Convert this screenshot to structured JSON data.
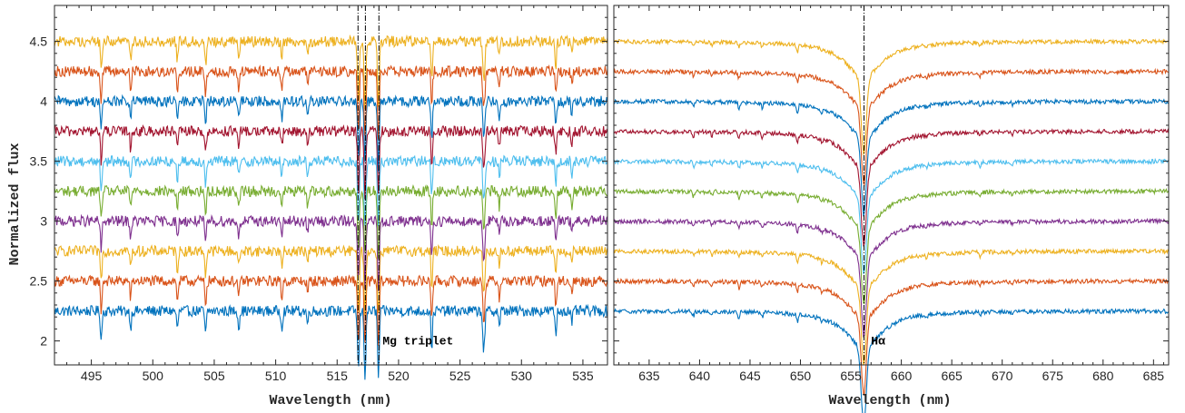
{
  "chart_data": {
    "type": "line",
    "ylabel": "Normalized flux",
    "panels": [
      {
        "name": "left-panel",
        "xlabel": "Wavelength (nm)",
        "xlim": [
          492,
          537
        ],
        "ylim": [
          1.8,
          4.8
        ],
        "xticks": [
          495,
          500,
          505,
          510,
          515,
          520,
          525,
          530,
          535
        ],
        "xtick_labels": [
          "495",
          "500",
          "505",
          "510",
          "515",
          "520",
          "525",
          "530",
          "535"
        ],
        "yticks": [
          2,
          2.5,
          3,
          3.5,
          4,
          4.5
        ],
        "ytick_labels": [
          "2",
          "2.5",
          "3",
          "3.5",
          "4",
          "4.5"
        ],
        "vlines": [
          516.7,
          517.3,
          518.4
        ],
        "annotation": {
          "text": "Mg triplet",
          "x": 518.7,
          "y": 1.97
        },
        "lines": [
          {
            "x": 517.27,
            "depth": 0.55,
            "width": 0.1
          },
          {
            "x": 518.36,
            "depth": 0.55,
            "width": 0.1
          },
          {
            "x": 516.73,
            "depth": 0.5,
            "width": 0.1
          },
          {
            "x": 495.8,
            "depth": 0.25,
            "width": 0.09
          },
          {
            "x": 498.2,
            "depth": 0.15,
            "width": 0.08
          },
          {
            "x": 502.0,
            "depth": 0.16,
            "width": 0.09
          },
          {
            "x": 504.3,
            "depth": 0.2,
            "width": 0.09
          },
          {
            "x": 507.0,
            "depth": 0.14,
            "width": 0.09
          },
          {
            "x": 510.5,
            "depth": 0.14,
            "width": 0.09
          },
          {
            "x": 512.6,
            "depth": 0.12,
            "width": 0.08
          },
          {
            "x": 522.7,
            "depth": 0.3,
            "width": 0.09
          },
          {
            "x": 526.9,
            "depth": 0.25,
            "width": 0.09
          },
          {
            "x": 527.0,
            "depth": 0.18,
            "width": 0.09
          },
          {
            "x": 528.2,
            "depth": 0.14,
            "width": 0.08
          },
          {
            "x": 532.8,
            "depth": 0.2,
            "width": 0.09
          },
          {
            "x": 534.1,
            "depth": 0.12,
            "width": 0.08
          }
        ]
      },
      {
        "name": "right-panel",
        "xlabel": "Wavelength (nm)",
        "xlim": [
          631.5,
          686.5
        ],
        "ylim": [
          1.8,
          4.8
        ],
        "xticks": [
          635,
          640,
          645,
          650,
          655,
          660,
          665,
          670,
          675,
          680,
          685
        ],
        "xtick_labels": [
          "635",
          "640",
          "645",
          "650",
          "655",
          "660",
          "665",
          "670",
          "675",
          "680",
          "685"
        ],
        "yticks": [
          2,
          2.5,
          3,
          3.5,
          4,
          4.5
        ],
        "vlines": [
          656.3
        ],
        "annotation": {
          "text": "Hα",
          "x": 657.0,
          "y": 1.97
        },
        "lines": [
          {
            "x": 649.7,
            "depth": 0.06,
            "width": 0.12
          },
          {
            "x": 643.9,
            "depth": 0.05,
            "width": 0.12
          },
          {
            "x": 639.4,
            "depth": 0.04,
            "width": 0.12
          },
          {
            "x": 641.2,
            "depth": 0.03,
            "width": 0.12
          },
          {
            "x": 646.2,
            "depth": 0.04,
            "width": 0.12
          },
          {
            "x": 652.1,
            "depth": 0.03,
            "width": 0.12
          },
          {
            "x": 662.5,
            "depth": 0.02,
            "width": 0.12
          },
          {
            "x": 667.8,
            "depth": 0.03,
            "width": 0.12
          },
          {
            "x": 671.0,
            "depth": 0.02,
            "width": 0.12
          }
        ],
        "halpha": {
          "x": 656.28,
          "core_depth": 0.65,
          "core_width": 0.35,
          "wing_depth": 0.3,
          "wing_width": 2.2
        }
      }
    ],
    "series": [
      {
        "offset": 2.25,
        "color": "#0072BD"
      },
      {
        "offset": 2.5,
        "color": "#D95319"
      },
      {
        "offset": 2.75,
        "color": "#EDB120"
      },
      {
        "offset": 3.0,
        "color": "#7E2F8E"
      },
      {
        "offset": 3.25,
        "color": "#77AC30"
      },
      {
        "offset": 3.5,
        "color": "#4DBEEE"
      },
      {
        "offset": 3.75,
        "color": "#A2142F"
      },
      {
        "offset": 4.0,
        "color": "#0072BD"
      },
      {
        "offset": 4.25,
        "color": "#D95319"
      },
      {
        "offset": 4.5,
        "color": "#EDB120"
      }
    ]
  }
}
